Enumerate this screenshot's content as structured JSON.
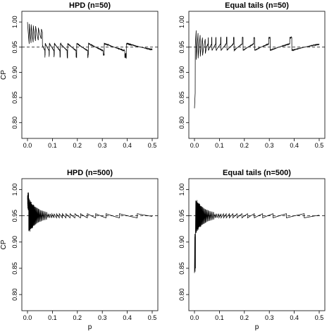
{
  "chart_data": [
    {
      "type": "line",
      "title": "HPD (n=50)",
      "xlabel": "",
      "ylabel": "CP",
      "n": 50,
      "method": "hpd",
      "xlim": [
        0,
        0.5
      ],
      "ylim": [
        0.78,
        1.01
      ],
      "xticks": [
        "0.0",
        "0.1",
        "0.2",
        "0.3",
        "0.4",
        "0.5"
      ],
      "yticks": [
        "0.80",
        "0.85",
        "0.90",
        "0.95",
        "1.00"
      ],
      "reference_line": 0.95,
      "grid": false,
      "series": [
        {
          "x": [
            0.0,
            0.01,
            0.02,
            0.03,
            0.04,
            0.05,
            0.06,
            0.07,
            0.08,
            0.09,
            0.1,
            0.12,
            0.14,
            0.16,
            0.18,
            0.2,
            0.25,
            0.3,
            0.35,
            0.4,
            0.45,
            0.5
          ],
          "y": [
            0.98,
            0.99,
            0.985,
            0.98,
            0.975,
            0.965,
            0.93,
            0.95,
            0.945,
            0.955,
            0.94,
            0.945,
            0.95,
            0.94,
            0.955,
            0.945,
            0.95,
            0.945,
            0.952,
            0.947,
            0.945,
            0.94
          ]
        }
      ]
    },
    {
      "type": "line",
      "title": "Equal tails (n=50)",
      "xlabel": "",
      "ylabel": "",
      "n": 50,
      "method": "equal",
      "xlim": [
        0,
        0.5
      ],
      "ylim": [
        0.78,
        1.01
      ],
      "xticks": [
        "0.0",
        "0.1",
        "0.2",
        "0.3",
        "0.4",
        "0.5"
      ],
      "yticks": [
        "0.80",
        "0.85",
        "0.90",
        "0.95",
        "1.00"
      ],
      "reference_line": 0.95,
      "grid": false,
      "series": [
        {
          "x": [
            0.0,
            0.005,
            0.01,
            0.02,
            0.03,
            0.04,
            0.05,
            0.06,
            0.08,
            0.1,
            0.12,
            0.15,
            0.2,
            0.25,
            0.3,
            0.35,
            0.4,
            0.45,
            0.5
          ],
          "y": [
            0.8,
            0.99,
            0.9,
            0.93,
            0.95,
            0.96,
            0.955,
            0.945,
            0.96,
            0.95,
            0.955,
            0.96,
            0.955,
            0.96,
            0.955,
            0.95,
            0.948,
            0.946,
            0.94
          ]
        }
      ]
    },
    {
      "type": "line",
      "title": "HPD (n=500)",
      "xlabel": "p",
      "ylabel": "CP",
      "n": 500,
      "method": "hpd",
      "xlim": [
        0,
        0.5
      ],
      "ylim": [
        0.78,
        1.01
      ],
      "xticks": [
        "0.0",
        "0.1",
        "0.2",
        "0.3",
        "0.4",
        "0.5"
      ],
      "yticks": [
        "0.80",
        "0.85",
        "0.90",
        "0.95",
        "1.00"
      ],
      "reference_line": 0.95,
      "grid": false,
      "series": [
        {
          "x": [
            0.0,
            0.002,
            0.005,
            0.01,
            0.02,
            0.05,
            0.1,
            0.2,
            0.3,
            0.4,
            0.5
          ],
          "y": [
            0.95,
            0.995,
            0.97,
            0.94,
            0.955,
            0.95,
            0.952,
            0.95,
            0.95,
            0.95,
            0.948
          ]
        }
      ]
    },
    {
      "type": "line",
      "title": "Equal tails (n=500)",
      "xlabel": "p",
      "ylabel": "",
      "n": 500,
      "method": "equal",
      "xlim": [
        0,
        0.5
      ],
      "ylim": [
        0.78,
        1.01
      ],
      "xticks": [
        "0.0",
        "0.1",
        "0.2",
        "0.3",
        "0.4",
        "0.5"
      ],
      "yticks": [
        "0.80",
        "0.85",
        "0.90",
        "0.95",
        "1.00"
      ],
      "reference_line": 0.95,
      "grid": false,
      "series": [
        {
          "x": [
            0.0,
            0.002,
            0.004,
            0.006,
            0.01,
            0.02,
            0.05,
            0.1,
            0.2,
            0.3,
            0.4,
            0.5
          ],
          "y": [
            0.95,
            0.82,
            0.97,
            0.93,
            0.96,
            0.945,
            0.95,
            0.952,
            0.95,
            0.95,
            0.95,
            0.948
          ]
        }
      ]
    }
  ]
}
